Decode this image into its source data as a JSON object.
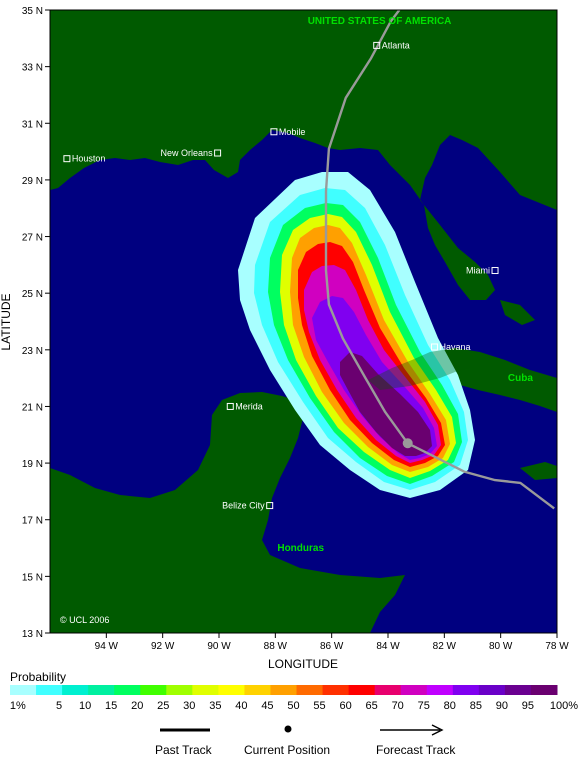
{
  "map": {
    "xlabel": "LONGITUDE",
    "ylabel": "LATITUDE",
    "lon_range": [
      -96,
      -78
    ],
    "lat_range": [
      13,
      35
    ],
    "lon_ticks": [
      {
        "v": -94,
        "t": "94 W"
      },
      {
        "v": -92,
        "t": "92 W"
      },
      {
        "v": -90,
        "t": "90 W"
      },
      {
        "v": -88,
        "t": "88 W"
      },
      {
        "v": -86,
        "t": "86 W"
      },
      {
        "v": -84,
        "t": "84 W"
      },
      {
        "v": -82,
        "t": "82 W"
      },
      {
        "v": -80,
        "t": "80 W"
      },
      {
        "v": -78,
        "t": "78 W"
      }
    ],
    "lat_ticks": [
      {
        "v": 13,
        "t": "13 N"
      },
      {
        "v": 15,
        "t": "15 N"
      },
      {
        "v": 17,
        "t": "17 N"
      },
      {
        "v": 19,
        "t": "19 N"
      },
      {
        "v": 21,
        "t": "21 N"
      },
      {
        "v": 23,
        "t": "23 N"
      },
      {
        "v": 25,
        "t": "25 N"
      },
      {
        "v": 27,
        "t": "27 N"
      },
      {
        "v": 29,
        "t": "29 N"
      },
      {
        "v": 31,
        "t": "31 N"
      },
      {
        "v": 33,
        "t": "33 N"
      },
      {
        "v": 35,
        "t": "35 N"
      }
    ],
    "ocean_color": "#000080",
    "land_color": "#005a00",
    "track_color": "#9a9a9a",
    "current_marker_color": "#9a9a9a",
    "copyright": "© UCL 2006",
    "countries": [
      {
        "name": "UNITED STATES OF AMERICA",
        "lon": -84.3,
        "lat": 34.5
      },
      {
        "name": "Cuba",
        "lon": -79.3,
        "lat": 21.9
      },
      {
        "name": "Honduras",
        "lon": -87.1,
        "lat": 15.9
      }
    ],
    "cities": [
      {
        "name": "Atlanta",
        "lon": -84.4,
        "lat": 33.75,
        "side": "right"
      },
      {
        "name": "Mobile",
        "lon": -88.05,
        "lat": 30.7,
        "side": "right"
      },
      {
        "name": "New Orleans",
        "lon": -90.05,
        "lat": 29.95,
        "side": "left"
      },
      {
        "name": "Houston",
        "lon": -95.4,
        "lat": 29.75,
        "side": "right"
      },
      {
        "name": "Miami",
        "lon": -80.2,
        "lat": 25.8,
        "side": "left"
      },
      {
        "name": "Havana",
        "lon": -82.35,
        "lat": 23.1,
        "side": "right"
      },
      {
        "name": "Merida",
        "lon": -89.6,
        "lat": 21.0,
        "side": "right"
      },
      {
        "name": "Belize City",
        "lon": -88.2,
        "lat": 17.5,
        "side": "left"
      }
    ],
    "track": [
      [
        -78.1,
        17.4
      ],
      [
        -79.3,
        18.3
      ],
      [
        -80.2,
        18.4
      ],
      [
        -81.3,
        18.7
      ],
      [
        -82.5,
        19.3
      ],
      [
        -83.3,
        19.7
      ],
      [
        -84.1,
        20.8
      ],
      [
        -84.8,
        22.0
      ],
      [
        -85.6,
        23.4
      ],
      [
        -86.1,
        24.6
      ],
      [
        -86.2,
        25.8
      ],
      [
        -86.2,
        27.2
      ],
      [
        -86.2,
        28.6
      ],
      [
        -86.1,
        30.1
      ],
      [
        -85.5,
        31.9
      ],
      [
        -84.6,
        33.3
      ],
      [
        -83.9,
        34.6
      ],
      [
        -83.6,
        35.0
      ]
    ],
    "current_position": {
      "lon": -83.3,
      "lat": 19.7
    }
  },
  "legend": {
    "title": "Probability",
    "first": "1%",
    "last": "100%",
    "labels": [
      "5",
      "10",
      "15",
      "20",
      "25",
      "30",
      "35",
      "40",
      "45",
      "50",
      "55",
      "60",
      "65",
      "70",
      "75",
      "80",
      "85",
      "90",
      "95"
    ],
    "colors": [
      "#a8ffff",
      "#40ffff",
      "#00f0d0",
      "#00f0a0",
      "#00ff60",
      "#40ff00",
      "#a0ff00",
      "#e0ff00",
      "#ffff00",
      "#ffd200",
      "#ffa000",
      "#ff6a00",
      "#ff3000",
      "#ff0000",
      "#e8006e",
      "#d000c0",
      "#c000ff",
      "#8000f0",
      "#6a00c8",
      "#6a0090",
      "#6a0070"
    ]
  },
  "key": {
    "past": "Past Track",
    "current": "Current Position",
    "forecast": "Forecast Track"
  }
}
